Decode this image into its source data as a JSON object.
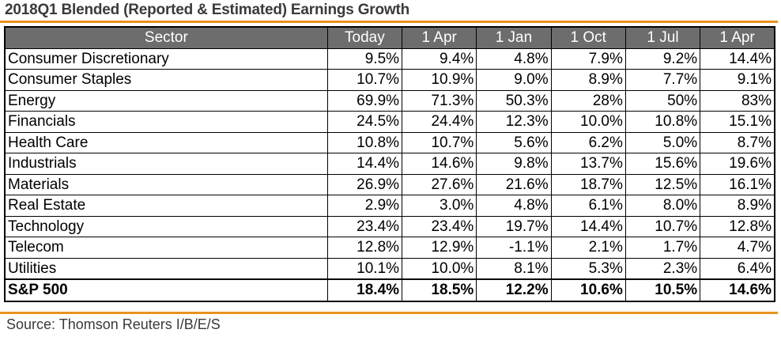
{
  "title": "2018Q1 Blended (Reported & Estimated) Earnings Growth",
  "columns": [
    "Sector",
    "Today",
    "1 Apr",
    "1 Jan",
    "1 Oct",
    "1 Jul",
    "1 Apr"
  ],
  "rows": [
    {
      "sector": "Consumer Discretionary",
      "values": [
        "9.5%",
        "9.4%",
        "4.8%",
        "7.9%",
        "9.2%",
        "14.4%"
      ]
    },
    {
      "sector": "Consumer Staples",
      "values": [
        "10.7%",
        "10.9%",
        "9.0%",
        "8.9%",
        "7.7%",
        "9.1%"
      ]
    },
    {
      "sector": "Energy",
      "values": [
        "69.9%",
        "71.3%",
        "50.3%",
        "28%",
        "50%",
        "83%"
      ]
    },
    {
      "sector": "Financials",
      "values": [
        "24.5%",
        "24.4%",
        "12.3%",
        "10.0%",
        "10.8%",
        "15.1%"
      ]
    },
    {
      "sector": "Health Care",
      "values": [
        "10.8%",
        "10.7%",
        "5.6%",
        "6.2%",
        "5.0%",
        "8.7%"
      ]
    },
    {
      "sector": "Industrials",
      "values": [
        "14.4%",
        "14.6%",
        "9.8%",
        "13.7%",
        "15.6%",
        "19.6%"
      ]
    },
    {
      "sector": "Materials",
      "values": [
        "26.9%",
        "27.6%",
        "21.6%",
        "18.7%",
        "12.5%",
        "16.1%"
      ]
    },
    {
      "sector": "Real Estate",
      "values": [
        "2.9%",
        "3.0%",
        "4.8%",
        "6.1%",
        "8.0%",
        "8.9%"
      ]
    },
    {
      "sector": "Technology",
      "values": [
        "23.4%",
        "23.4%",
        "19.7%",
        "14.4%",
        "10.7%",
        "12.8%"
      ]
    },
    {
      "sector": "Telecom",
      "values": [
        "12.8%",
        "12.9%",
        "-1.1%",
        "2.1%",
        "1.7%",
        "4.7%"
      ]
    },
    {
      "sector": "Utilities",
      "values": [
        "10.1%",
        "10.0%",
        "8.1%",
        "5.3%",
        "2.3%",
        "6.4%"
      ]
    }
  ],
  "total": {
    "sector": "S&P 500",
    "values": [
      "18.4%",
      "18.5%",
      "12.2%",
      "10.6%",
      "10.5%",
      "14.6%"
    ]
  },
  "source": "Source: Thomson Reuters I/B/E/S",
  "colors": {
    "accent_rule": "#e8921f",
    "header_bg": "#6d6d6d"
  }
}
